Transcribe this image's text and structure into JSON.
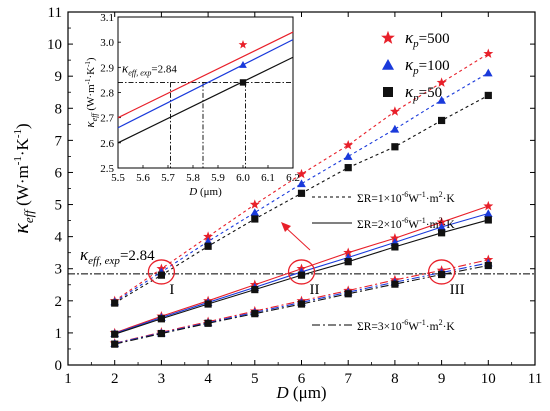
{
  "chart_data": [
    {
      "type": "line",
      "name": "main",
      "xlabel": "D (μm)",
      "ylabel": "κ_eff (W·m⁻¹·K⁻¹)",
      "xlim": [
        1,
        11
      ],
      "ylim": [
        0,
        11
      ],
      "xticks": [
        1,
        2,
        3,
        4,
        5,
        6,
        7,
        8,
        9,
        10,
        11
      ],
      "yticks": [
        0,
        1,
        2,
        3,
        4,
        5,
        6,
        7,
        8,
        9,
        10,
        11
      ],
      "x": [
        2,
        3,
        4,
        5,
        6,
        7,
        8,
        9,
        10
      ],
      "kappa_p_legend": [
        {
          "label": "κp=500",
          "color": "#e8202a",
          "marker": "star"
        },
        {
          "label": "κp=100",
          "color": "#1a3adb",
          "marker": "triangle"
        },
        {
          "label": "κp=50",
          "color": "#111111",
          "marker": "square"
        }
      ],
      "resistance_legend": [
        {
          "label": "ΣR=1×10⁻⁶W⁻¹·m²·K",
          "dash": "3 3"
        },
        {
          "label": "ΣR=2×10⁻⁶W⁻¹·m²·K",
          "dash": ""
        },
        {
          "label": "ΣR=3×10⁻⁶W⁻¹·m²·K",
          "dash": "8 3 2 3"
        }
      ],
      "series": [
        {
          "group": "R1",
          "kappa": "500",
          "values": [
            2.0,
            3.0,
            4.0,
            5.0,
            5.95,
            6.85,
            7.9,
            8.8,
            9.7
          ]
        },
        {
          "group": "R1",
          "kappa": "100",
          "values": [
            1.97,
            2.9,
            3.85,
            4.75,
            5.65,
            6.5,
            7.35,
            8.25,
            9.1
          ]
        },
        {
          "group": "R1",
          "kappa": "50",
          "values": [
            1.93,
            2.8,
            3.7,
            4.55,
            5.35,
            6.15,
            6.8,
            7.62,
            8.4
          ]
        },
        {
          "group": "R2",
          "kappa": "500",
          "values": [
            1.0,
            1.52,
            2.0,
            2.5,
            3.0,
            3.5,
            3.95,
            4.45,
            4.95
          ]
        },
        {
          "group": "R2",
          "kappa": "100",
          "values": [
            0.98,
            1.48,
            1.95,
            2.42,
            2.9,
            3.35,
            3.82,
            4.3,
            4.72
          ]
        },
        {
          "group": "R2",
          "kappa": "50",
          "values": [
            0.96,
            1.44,
            1.9,
            2.35,
            2.8,
            3.22,
            3.68,
            4.12,
            4.52
          ]
        },
        {
          "group": "R3",
          "kappa": "500",
          "values": [
            0.68,
            1.02,
            1.35,
            1.68,
            2.0,
            2.32,
            2.65,
            2.95,
            3.28
          ]
        },
        {
          "group": "R3",
          "kappa": "100",
          "values": [
            0.67,
            1.0,
            1.32,
            1.64,
            1.95,
            2.27,
            2.58,
            2.88,
            3.18
          ]
        },
        {
          "group": "R3",
          "kappa": "50",
          "values": [
            0.65,
            0.98,
            1.3,
            1.6,
            1.9,
            2.22,
            2.52,
            2.82,
            3.1
          ]
        }
      ],
      "reference_line": {
        "y": 2.84,
        "label_main": "κ",
        "label_sub": "eff, exp",
        "label_value": "=2.84"
      },
      "circled_points": [
        {
          "x": 3,
          "y": 2.9,
          "label": "I"
        },
        {
          "x": 6,
          "y": 2.9,
          "label": "II"
        },
        {
          "x": 9,
          "y": 2.9,
          "label": "III"
        }
      ]
    },
    {
      "type": "line",
      "name": "inset",
      "xlabel": "D (μm)",
      "ylabel": "κ_eff (W·m⁻¹·K⁻¹)",
      "xlim": [
        5.5,
        6.2
      ],
      "ylim": [
        2.5,
        3.1
      ],
      "xticks": [
        "5.5",
        "5.6",
        "5.7",
        "5.8",
        "5.9",
        "6.0",
        "6.1",
        "6.2"
      ],
      "yticks": [
        "2.5",
        "2.6",
        "2.7",
        "2.8",
        "2.9",
        "3.0",
        "3.1"
      ],
      "series": [
        {
          "kappa": "500",
          "x": [
            5.5,
            6.2
          ],
          "values": [
            2.7,
            3.04
          ]
        },
        {
          "kappa": "100",
          "x": [
            5.5,
            6.2
          ],
          "values": [
            2.66,
            3.01
          ]
        },
        {
          "kappa": "50",
          "x": [
            5.5,
            6.2
          ],
          "values": [
            2.6,
            2.94
          ]
        }
      ],
      "markers": [
        {
          "kappa": "500",
          "x": 6.0,
          "y": 2.99
        },
        {
          "kappa": "100",
          "x": 6.0,
          "y": 2.91
        },
        {
          "kappa": "50",
          "x": 6.0,
          "y": 2.84
        }
      ],
      "reference_line": {
        "y": 2.84,
        "label_main": "κ",
        "label_sub": "eff, exp",
        "label_value": "=2.84"
      },
      "drop_lines_x": [
        5.71,
        5.84,
        6.01
      ]
    }
  ],
  "colors": {
    "red": "#e8202a",
    "blue": "#1a3adb",
    "black": "#111111"
  }
}
